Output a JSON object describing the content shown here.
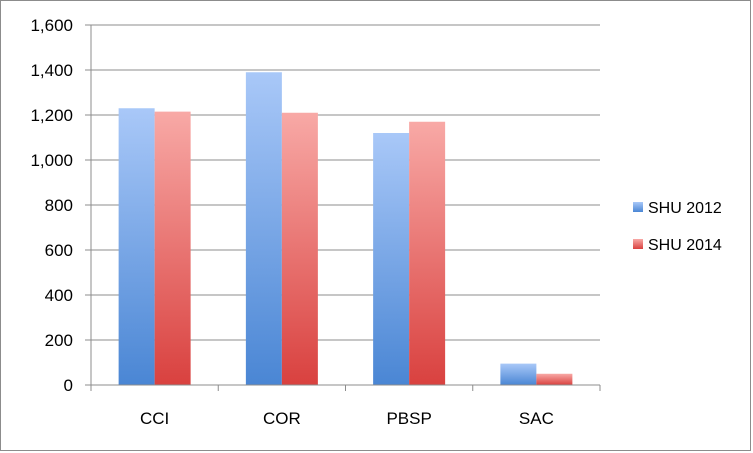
{
  "chart_data": {
    "type": "bar",
    "categories": [
      "CCI",
      "COR",
      "PBSP",
      "SAC"
    ],
    "series": [
      {
        "name": "SHU 2012",
        "values": [
          1230,
          1390,
          1120,
          95
        ],
        "color": "#4a86d4",
        "color_light": "#a9c8f8"
      },
      {
        "name": "SHU 2014",
        "values": [
          1215,
          1210,
          1170,
          50
        ],
        "color": "#d9413f",
        "color_light": "#f8a9a6"
      }
    ],
    "yticks": [
      "0",
      "200",
      "400",
      "600",
      "800",
      "1,000",
      "1,200",
      "1,400",
      "1,600"
    ],
    "ylim": [
      0,
      1600
    ],
    "grid": true,
    "legend_position": "right",
    "title": "",
    "xlabel": "",
    "ylabel": ""
  }
}
